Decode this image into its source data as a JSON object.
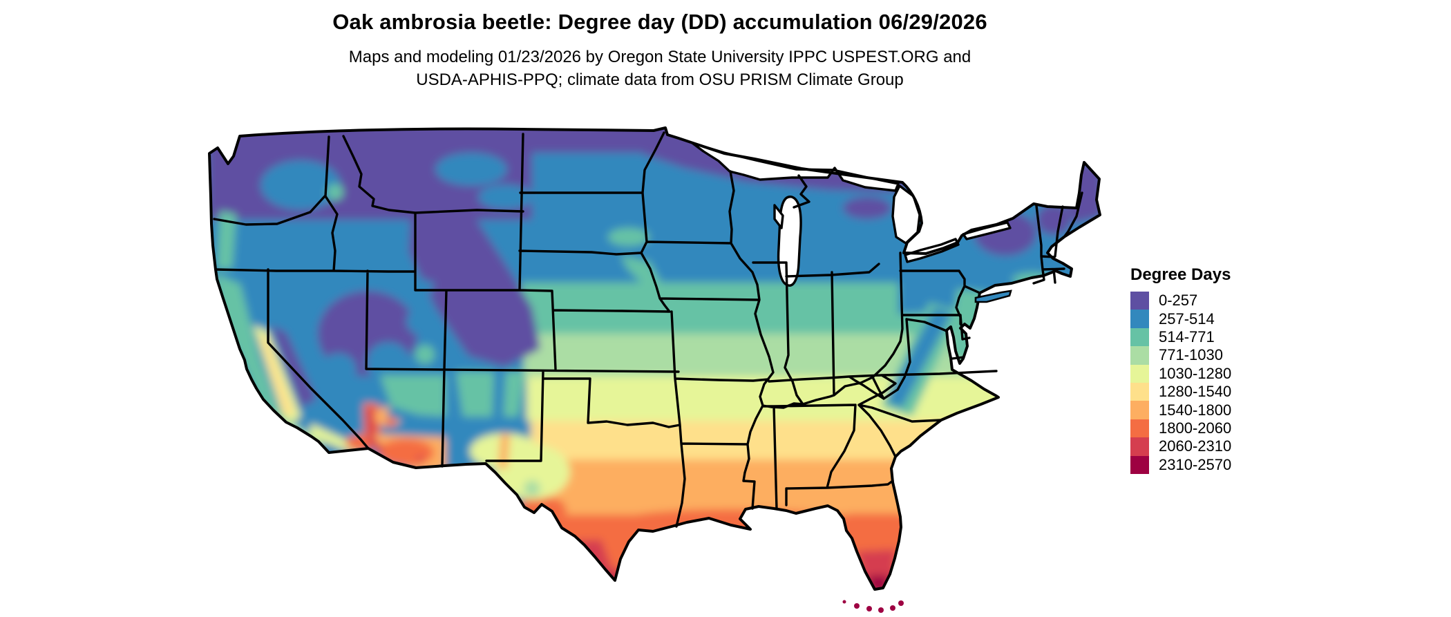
{
  "header": {
    "title": "Oak ambrosia beetle: Degree day (DD) accumulation 06/29/2026",
    "subtitle_line1": "Maps and modeling 01/23/2026 by Oregon State University IPPC USPEST.ORG and",
    "subtitle_line2": "USDA-APHIS-PPQ; climate data from OSU PRISM Climate Group"
  },
  "legend": {
    "title": "Degree Days",
    "items": [
      {
        "label": "0-257",
        "color": "#5e4fa2"
      },
      {
        "label": "257-514",
        "color": "#3288bd"
      },
      {
        "label": "514-771",
        "color": "#66c2a5"
      },
      {
        "label": "771-1030",
        "color": "#abdda4"
      },
      {
        "label": "1030-1280",
        "color": "#e6f598"
      },
      {
        "label": "1280-1540",
        "color": "#fee08b"
      },
      {
        "label": "1540-1800",
        "color": "#fdae61"
      },
      {
        "label": "1800-2060",
        "color": "#f46d43"
      },
      {
        "label": "2060-2310",
        "color": "#d53e4f"
      },
      {
        "label": "2310-2570",
        "color": "#9e0142"
      }
    ]
  },
  "map": {
    "region": "Contiguous United States",
    "kind": "Degree day (DD) accumulation raster with state boundaries",
    "units": "degree days"
  }
}
